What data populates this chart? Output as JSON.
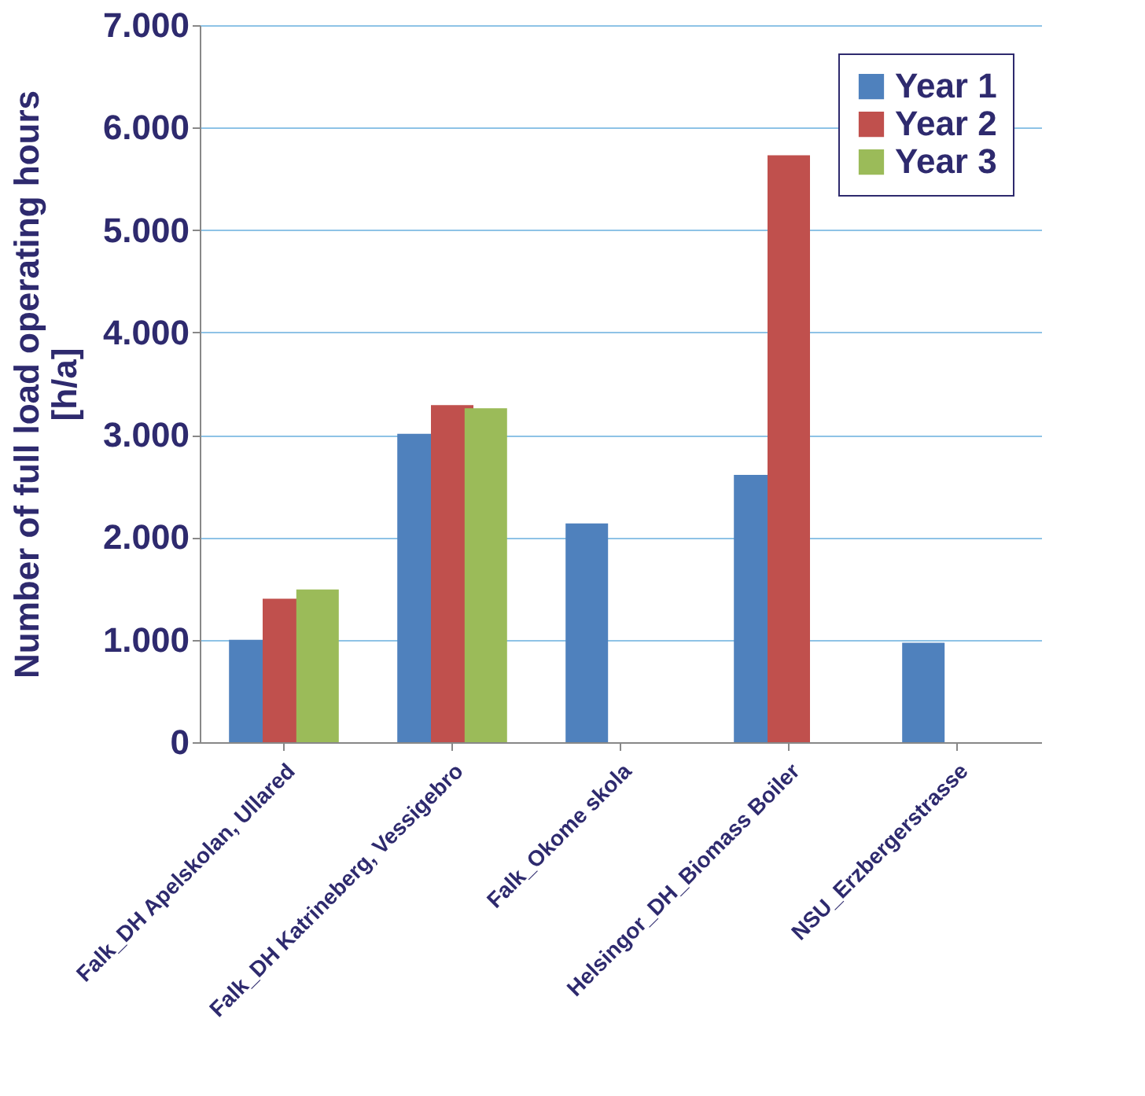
{
  "chart_data": {
    "type": "bar",
    "ylabel": "Number of full load operating hours\n[h/a]",
    "categories": [
      "Falk_DH Apelskolan, Ullared",
      "Falk_DH Katrineberg, Vessigebro",
      "Falk_Okome skola",
      "Helsingor_DH_Biomass Boiler",
      "NSU_Erzbergerstrasse"
    ],
    "series": [
      {
        "name": "Year 1",
        "color": "#4f81bd",
        "values": [
          1000,
          3010,
          2135,
          2610,
          970
        ]
      },
      {
        "name": "Year 2",
        "color": "#c0504d",
        "values": [
          1400,
          3290,
          null,
          5730,
          null
        ]
      },
      {
        "name": "Year 3",
        "color": "#9bbb59",
        "values": [
          1490,
          3260,
          null,
          null,
          null
        ]
      }
    ],
    "ylim": [
      0,
      7000
    ],
    "yticks": [
      0,
      {
        "value": 1000,
        "label": "1.000"
      },
      {
        "value": 2000,
        "label": "2.000"
      },
      {
        "value": 3000,
        "label": "3.000"
      },
      {
        "value": 4000,
        "label": "4.000"
      },
      {
        "value": 5000,
        "label": "5.000"
      },
      {
        "value": 6000,
        "label": "6.000"
      },
      {
        "value": 7000,
        "label": "7.000"
      }
    ],
    "grid": "y",
    "legend": "top right"
  }
}
